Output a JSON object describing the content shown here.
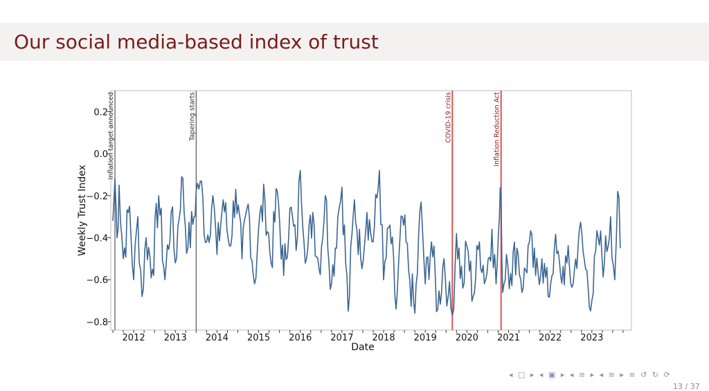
{
  "slide": {
    "title": "Our social media-based index of trust",
    "page": "13 / 37",
    "nav_glyphs": "◂ □ ▸  ◂ ▣ ▸  ◂ ≡ ▸  ◂ ≡ ▸   ≡   ↺ ↻ ⟳"
  },
  "colors": {
    "title": "#7a1b1b",
    "line": "#3b6592",
    "event_black": "#555555",
    "event_red": "#d9534f"
  },
  "chart_data": {
    "type": "line",
    "title": "",
    "xlabel": "Date",
    "ylabel": "Weekly Trust Index",
    "xlim": [
      2011.45,
      2023.95
    ],
    "ylim": [
      -0.84,
      0.3
    ],
    "yticks": [
      0.2,
      0.0,
      -0.2,
      -0.4,
      -0.6,
      -0.8
    ],
    "ytick_labels": [
      "0.2",
      "0.0",
      "−0.2",
      "−0.4",
      "−0.6",
      "−0.8"
    ],
    "xtick_labels": [
      "2012",
      "2013",
      "2014",
      "2015",
      "2016",
      "2017",
      "2018",
      "2019",
      "2020",
      "2021",
      "2022",
      "2023"
    ],
    "xtick_centers": [
      2012.0,
      2013.0,
      2014.0,
      2015.0,
      2016.0,
      2017.0,
      2018.0,
      2019.0,
      2020.0,
      2021.0,
      2022.0,
      2023.0
    ],
    "events": [
      {
        "label": "Inflation target announced",
        "x": 2011.55,
        "color": "black"
      },
      {
        "label": "Tapering starts",
        "x": 2013.5,
        "color": "black"
      },
      {
        "label": "COVID-19 crisis",
        "x": 2019.65,
        "color": "red"
      },
      {
        "label": "Inflation Reduction Act",
        "x": 2020.82,
        "color": "red"
      }
    ],
    "series": [
      {
        "name": "Weekly Trust Index",
        "x": [
          2011.5,
          2011.55,
          2011.6,
          2011.65,
          2011.75,
          2011.9,
          2012.0,
          2012.1,
          2012.2,
          2012.3,
          2012.45,
          2012.6,
          2012.75,
          2012.9,
          2013.0,
          2013.15,
          2013.3,
          2013.45,
          2013.5,
          2013.6,
          2013.75,
          2013.9,
          2014.0,
          2014.15,
          2014.3,
          2014.45,
          2014.6,
          2014.75,
          2014.9,
          2015.0,
          2015.15,
          2015.3,
          2015.45,
          2015.6,
          2015.75,
          2015.9,
          2016.0,
          2016.15,
          2016.3,
          2016.45,
          2016.6,
          2016.75,
          2016.9,
          2017.0,
          2017.15,
          2017.3,
          2017.45,
          2017.6,
          2017.75,
          2017.9,
          2018.0,
          2018.15,
          2018.3,
          2018.45,
          2018.6,
          2018.75,
          2018.9,
          2019.0,
          2019.15,
          2019.3,
          2019.45,
          2019.55,
          2019.65,
          2019.75,
          2019.9,
          2020.0,
          2020.15,
          2020.3,
          2020.45,
          2020.6,
          2020.7,
          2020.78,
          2020.82,
          2020.86,
          2020.95,
          2021.05,
          2021.2,
          2021.35,
          2021.5,
          2021.65,
          2021.8,
          2021.95,
          2022.1,
          2022.25,
          2022.4,
          2022.55,
          2022.7,
          2022.85,
          2023.0,
          2023.15,
          2023.3,
          2023.45,
          2023.55,
          2023.62,
          2023.68
        ],
        "y": [
          -0.32,
          -0.12,
          -0.4,
          -0.15,
          -0.5,
          -0.25,
          -0.6,
          -0.3,
          -0.68,
          -0.4,
          -0.55,
          -0.2,
          -0.6,
          -0.28,
          -0.52,
          -0.11,
          -0.45,
          -0.3,
          -0.18,
          -0.13,
          -0.42,
          -0.2,
          -0.48,
          -0.22,
          -0.44,
          -0.17,
          -0.5,
          -0.24,
          -0.62,
          -0.35,
          -0.22,
          -0.52,
          -0.18,
          -0.58,
          -0.26,
          -0.46,
          -0.08,
          -0.5,
          -0.28,
          -0.55,
          -0.2,
          -0.62,
          -0.3,
          -0.16,
          -0.75,
          -0.22,
          -0.5,
          -0.28,
          -0.42,
          -0.08,
          -0.6,
          -0.34,
          -0.74,
          -0.3,
          -0.55,
          -0.76,
          -0.23,
          -0.62,
          -0.42,
          -0.74,
          -0.5,
          -0.68,
          -0.77,
          -0.38,
          -0.64,
          -0.44,
          -0.68,
          -0.42,
          -0.6,
          -0.36,
          -0.62,
          -0.3,
          -0.2,
          -0.66,
          -0.48,
          -0.57,
          -0.45,
          -0.64,
          -0.42,
          -0.58,
          -0.5,
          -0.68,
          -0.45,
          -0.58,
          -0.52,
          -0.62,
          -0.36,
          -0.55,
          -0.7,
          -0.4,
          -0.52,
          -0.3,
          -0.6,
          -0.18,
          -0.45
        ]
      }
    ]
  }
}
